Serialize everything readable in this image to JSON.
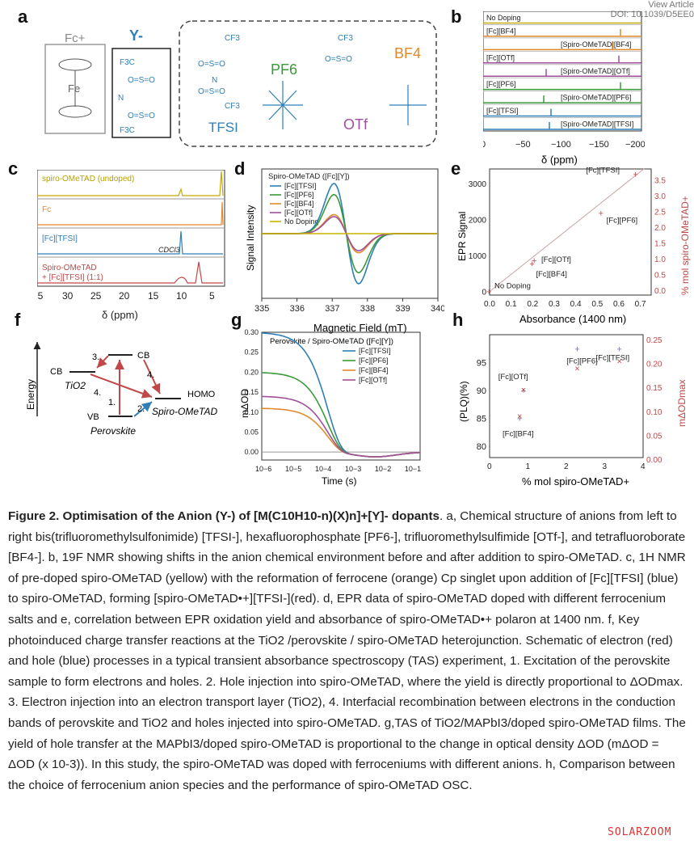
{
  "header": {
    "view_article": "View Article",
    "doi": "DOI: 10.1039/D5EE0"
  },
  "panels": {
    "a": "a",
    "b": "b",
    "c": "c",
    "d": "d",
    "e": "e",
    "f": "f",
    "g": "g",
    "h": "h"
  },
  "panel_a": {
    "fc_label": "Fc+",
    "fe_label": "Fe",
    "y_label": "Y-",
    "cf3": "CF3",
    "f3c": "F3C",
    "s_o": "O=S=O",
    "n_label": "N",
    "anions": {
      "tfsi": "TFSI",
      "pf6": "PF6",
      "otf": "OTf",
      "bf4": "BF4"
    },
    "colors": {
      "tfsi": "#2f7fb6",
      "pf6": "#3a9a3a",
      "otf": "#a0509a",
      "bf4": "#e08a2c"
    }
  },
  "panel_b": {
    "rows": [
      "No Doping",
      "[Fc][BF4]",
      "[Spiro-OMeTAD][BF4]",
      "[Fc][OTf]",
      "[Spiro-OMeTAD][OTf]",
      "[Fc][PF6]",
      "[Spiro-OMeTAD][PF6]",
      "[Fc][TFSI]",
      "[Spiro-OMeTAD][TFSI]"
    ],
    "xlabel": "δ (ppm)",
    "xticks": [
      "0",
      "−50",
      "−100",
      "−150",
      "−200"
    ]
  },
  "panel_c": {
    "traces": [
      "spiro-OMeTAD (undoped)",
      "Fc",
      "[Fc][TFSI]",
      "Spiro-OMeTAD",
      "+ [Fc][TFSI] (1:1)"
    ],
    "cdcl3": "CDCl3",
    "xlabel": "δ (ppm)",
    "xticks": [
      "35",
      "30",
      "25",
      "20",
      "15",
      "10",
      "5"
    ]
  },
  "chart_data": [
    {
      "type": "line",
      "title": "Spiro-OMeTAD ([Fc][Y])",
      "xlabel": "Magnetic Field (mT)",
      "ylabel": "Signal Intensity",
      "x_ticks": [
        "335",
        "336",
        "337",
        "338",
        "339",
        "340"
      ],
      "xlim": [
        335,
        340
      ],
      "series": [
        {
          "name": "[Fc][TFSI]",
          "color": "#2f7fb6",
          "amplitude": 1.0
        },
        {
          "name": "[Fc][PF6]",
          "color": "#3a9a3a",
          "amplitude": 0.78
        },
        {
          "name": "[Fc][BF4]",
          "color": "#e08a2c",
          "amplitude": 0.38
        },
        {
          "name": "[Fc][OTf]",
          "color": "#a0509a",
          "amplitude": 0.34
        },
        {
          "name": "No Doping",
          "color": "#c8b400",
          "amplitude": 0.0
        }
      ]
    },
    {
      "type": "scatter",
      "xlabel": "Absorbance (1400 nm)",
      "ylabel": "EPR Signal",
      "y2label": "% mol spiro-OMeTAD+",
      "x_ticks": [
        "0.0",
        "0.1",
        "0.2",
        "0.3",
        "0.4",
        "0.5",
        "0.6",
        "0.7"
      ],
      "y_ticks": [
        "0",
        "1000",
        "2000",
        "3000"
      ],
      "y2_ticks": [
        "0.0",
        "0.5",
        "1.0",
        "1.5",
        "2.0",
        "2.5",
        "3.0",
        "3.5"
      ],
      "xlim": [
        0,
        0.75
      ],
      "ylim": [
        -100,
        3400
      ],
      "points": [
        {
          "label": "No Doping",
          "x": 0.0,
          "y": 0
        },
        {
          "label": "[Fc][BF4]",
          "x": 0.2,
          "y": 780
        },
        {
          "label": "[Fc][OTf]",
          "x": 0.21,
          "y": 860
        },
        {
          "label": "[Fc][PF6]",
          "x": 0.52,
          "y": 2180
        },
        {
          "label": "[Fc][TFSI]",
          "x": 0.68,
          "y": 3250
        }
      ]
    },
    {
      "type": "line",
      "title": "Perovskite / Spiro-OMeTAD ([Fc][Y])",
      "xlabel": "Time (s)",
      "ylabel": "mΔOD",
      "x_ticks": [
        "10−6",
        "10−5",
        "10−4",
        "10−3",
        "10−2",
        "10−1"
      ],
      "y_ticks": [
        "0.00",
        "0.05",
        "0.10",
        "0.15",
        "0.20",
        "0.25",
        "0.30"
      ],
      "ylim": [
        -0.02,
        0.3
      ],
      "series": [
        {
          "name": "[Fc][TFSI]",
          "color": "#2f7fb6",
          "y0": 0.3
        },
        {
          "name": "[Fc][PF6]",
          "color": "#3a9a3a",
          "y0": 0.2
        },
        {
          "name": "[Fc][BF4]",
          "color": "#e08a2c",
          "y0": 0.11
        },
        {
          "name": "[Fc][OTf]",
          "color": "#a0509a",
          "y0": 0.14
        }
      ]
    },
    {
      "type": "scatter",
      "xlabel": "% mol spiro-OMeTAD+",
      "ylabel": "(PLQ)(%)",
      "y2label": "mΔODmax",
      "x_ticks": [
        "0",
        "1",
        "2",
        "3",
        "4"
      ],
      "y_ticks": [
        "80",
        "85",
        "90",
        "95"
      ],
      "y2_ticks": [
        "0.00",
        "0.05",
        "0.10",
        "0.15",
        "0.20",
        "0.25"
      ],
      "xlim": [
        0,
        4
      ],
      "ylim": [
        78,
        100
      ],
      "points": [
        {
          "label": "[Fc][BF4]",
          "x": 0.8,
          "plq": 85,
          "dod": 0.09
        },
        {
          "label": "[Fc][OTf]",
          "x": 0.9,
          "plq": 90,
          "dod": 0.145
        },
        {
          "label": "[Fc][PF6]",
          "x": 2.3,
          "plq": 97.5,
          "dod": 0.19
        },
        {
          "label": "[Fc][TFSI]",
          "x": 3.4,
          "plq": 97.5,
          "dod": 0.205
        }
      ]
    }
  ],
  "panel_f": {
    "energy": "Energy",
    "cb": "CB",
    "vb": "VB",
    "homo": "HOMO",
    "tio2": "TiO2",
    "perovskite": "Perovskite",
    "spiro": "Spiro-OMeTAD",
    "steps": [
      "1.",
      "2.",
      "3.",
      "4.",
      "4."
    ]
  },
  "caption": {
    "fig": "Figure 2.",
    "title": "Optimisation of the Anion (Y-) of [M(C10H10-n)(X)n]+[Y]- dopants",
    "body": ". a, Chemical structure of anions from left to right bis(trifluoromethylsulfonimide) [TFSI-], hexafluorophosphate [PF6-], trifluoromethylsulfimide [OTf-], and tetrafluoroborate [BF4-]. b, 19F NMR showing shifts in the anion chemical environment before and after addition to spiro-OMeTAD. c, 1H NMR of pre-doped spiro-OMeTAD (yellow) with the reformation of ferrocene (orange) Cp singlet upon addition of [Fc][TFSI] (blue) to spiro-OMeTAD, forming [spiro-OMeTAD•+][TFSI-](red). d, EPR data of spiro-OMeTAD doped with different ferrocenium salts and e, correlation between EPR oxidation yield and absorbance of spiro-OMeTAD•+ polaron at 1400 nm. f, Key photoinduced charge transfer reactions at the TiO2 /perovskite / spiro-OMeTAD heterojunction. Schematic of electron (red) and hole (blue) processes in a typical transient absorbance spectroscopy (TAS) experiment, 1. Excitation of the perovskite sample to form electrons and holes. 2. Hole injection into spiro-OMeTAD, where the yield is directly proportional to ΔODmax. 3. Electron injection into an electron transport layer (TiO2), 4. Interfacial recombination between electrons in the conduction bands of perovskite and TiO2 and holes injected into spiro-OMeTAD. g,TAS of TiO2/MAPbI3/doped spiro-OMeTAD films. The yield of hole transfer at the MAPbI3/doped spiro-OMeTAD is proportional to the change in optical density ΔOD (mΔOD = ΔOD (x 10-3)). In this study, the spiro-OMeTAD was doped with ferroceniums with different anions. h, Comparison between the choice of ferrocenium anion species and the performance of spiro-OMeTAD OSC."
  },
  "watermark": "SOLARZOOM"
}
